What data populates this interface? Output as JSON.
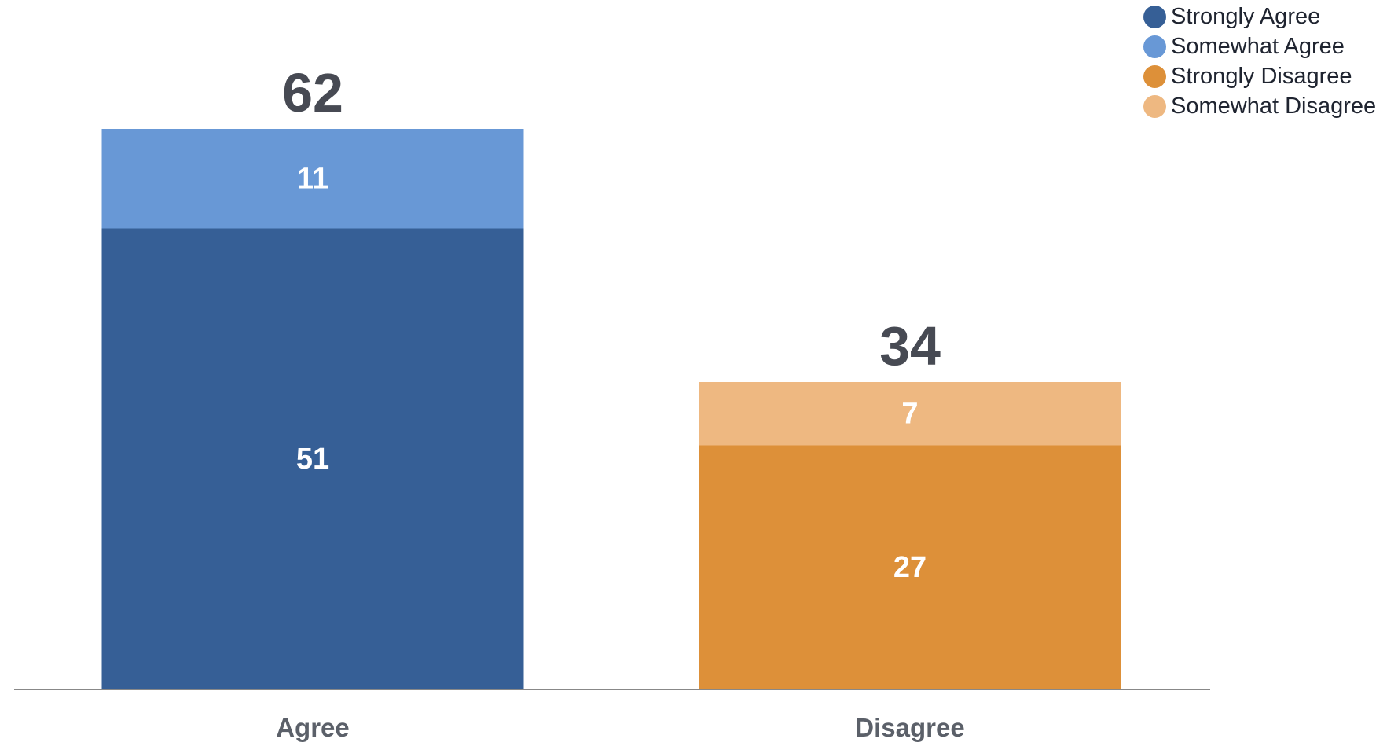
{
  "chart_data": {
    "type": "bar",
    "stacked": true,
    "categories": [
      "Agree",
      "Disagree"
    ],
    "totals": [
      "62",
      "34"
    ],
    "series": [
      {
        "name": "Strongly Agree",
        "color": "#365f96",
        "values": [
          51,
          0
        ]
      },
      {
        "name": "Somewhat Agree",
        "color": "#6898d6",
        "values": [
          11,
          0
        ]
      },
      {
        "name": "Strongly Disagree",
        "color": "#dd9039",
        "values": [
          0,
          27
        ]
      },
      {
        "name": "Somewhat Disagree",
        "color": "#eeb881",
        "values": [
          0,
          7
        ]
      }
    ],
    "ylim": [
      0,
      62
    ],
    "grid": false,
    "legend_position": "top-right",
    "colors": {
      "axis": "#888888",
      "total_label": "#474a53",
      "category_label": "#5b6069",
      "segment_label": "#ffffff"
    }
  }
}
